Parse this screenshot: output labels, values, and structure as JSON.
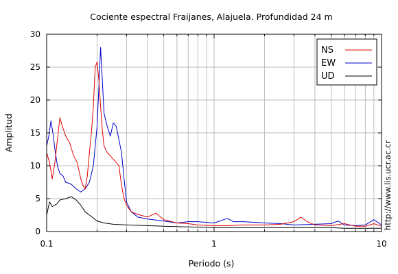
{
  "chart_data": {
    "type": "line",
    "title": "Cociente espectral Fraijanes, Alajuela. Profundidad 24 m",
    "xlabel": "Periodo (s)",
    "ylabel": "Amplitud",
    "xscale": "log",
    "xlim": [
      0.1,
      10
    ],
    "ylim": [
      0,
      30
    ],
    "xticks": [
      {
        "value": 0.1,
        "label": "0.1"
      },
      {
        "value": 1,
        "label": "1"
      },
      {
        "value": 10,
        "label": "10"
      }
    ],
    "yticks": [
      0,
      5,
      10,
      15,
      20,
      25,
      30
    ],
    "grid": true,
    "legend_position": "top-right",
    "side_note": "http://www.lis.ucr.ac.cr",
    "series": [
      {
        "name": "NS",
        "color": "#e00000",
        "points": [
          [
            0.1,
            12.0
          ],
          [
            0.104,
            10.5
          ],
          [
            0.108,
            8.0
          ],
          [
            0.112,
            10.5
          ],
          [
            0.116,
            14.0
          ],
          [
            0.12,
            17.3
          ],
          [
            0.124,
            16.0
          ],
          [
            0.13,
            14.5
          ],
          [
            0.137,
            13.5
          ],
          [
            0.145,
            11.5
          ],
          [
            0.152,
            10.5
          ],
          [
            0.16,
            8.0
          ],
          [
            0.165,
            7.0
          ],
          [
            0.17,
            6.5
          ],
          [
            0.175,
            8.5
          ],
          [
            0.18,
            12.0
          ],
          [
            0.185,
            15.0
          ],
          [
            0.19,
            19.0
          ],
          [
            0.195,
            25.0
          ],
          [
            0.2,
            25.8
          ],
          [
            0.205,
            23.0
          ],
          [
            0.21,
            19.0
          ],
          [
            0.215,
            15.5
          ],
          [
            0.22,
            13.0
          ],
          [
            0.23,
            12.0
          ],
          [
            0.24,
            11.5
          ],
          [
            0.25,
            11.0
          ],
          [
            0.26,
            10.5
          ],
          [
            0.27,
            10.0
          ],
          [
            0.28,
            7.0
          ],
          [
            0.29,
            5.0
          ],
          [
            0.3,
            4.0
          ],
          [
            0.32,
            3.0
          ],
          [
            0.35,
            2.6
          ],
          [
            0.4,
            2.2
          ],
          [
            0.45,
            2.8
          ],
          [
            0.5,
            1.8
          ],
          [
            0.6,
            1.3
          ],
          [
            0.7,
            1.2
          ],
          [
            0.8,
            1.0
          ],
          [
            1.0,
            0.9
          ],
          [
            1.2,
            0.9
          ],
          [
            1.5,
            1.0
          ],
          [
            2.0,
            1.0
          ],
          [
            2.5,
            1.1
          ],
          [
            3.0,
            1.5
          ],
          [
            3.3,
            2.2
          ],
          [
            3.6,
            1.5
          ],
          [
            4.0,
            1.0
          ],
          [
            5.0,
            0.9
          ],
          [
            6.0,
            1.2
          ],
          [
            7.0,
            0.8
          ],
          [
            8.0,
            0.8
          ],
          [
            9.0,
            1.2
          ],
          [
            10.0,
            0.8
          ]
        ]
      },
      {
        "name": "EW",
        "color": "#0000c8",
        "points": [
          [
            0.1,
            13.0
          ],
          [
            0.103,
            14.5
          ],
          [
            0.106,
            16.8
          ],
          [
            0.109,
            15.0
          ],
          [
            0.112,
            12.5
          ],
          [
            0.116,
            10.0
          ],
          [
            0.12,
            8.8
          ],
          [
            0.125,
            8.5
          ],
          [
            0.13,
            7.5
          ],
          [
            0.14,
            7.2
          ],
          [
            0.15,
            6.5
          ],
          [
            0.16,
            6.0
          ],
          [
            0.17,
            6.5
          ],
          [
            0.18,
            7.5
          ],
          [
            0.19,
            10.0
          ],
          [
            0.2,
            16.0
          ],
          [
            0.205,
            22.0
          ],
          [
            0.21,
            28.0
          ],
          [
            0.215,
            23.0
          ],
          [
            0.22,
            18.0
          ],
          [
            0.23,
            16.0
          ],
          [
            0.24,
            14.5
          ],
          [
            0.25,
            16.5
          ],
          [
            0.26,
            16.0
          ],
          [
            0.27,
            14.0
          ],
          [
            0.28,
            12.0
          ],
          [
            0.29,
            8.0
          ],
          [
            0.3,
            4.5
          ],
          [
            0.32,
            3.0
          ],
          [
            0.35,
            2.2
          ],
          [
            0.4,
            1.9
          ],
          [
            0.5,
            1.6
          ],
          [
            0.6,
            1.3
          ],
          [
            0.7,
            1.5
          ],
          [
            0.8,
            1.5
          ],
          [
            1.0,
            1.3
          ],
          [
            1.2,
            2.0
          ],
          [
            1.3,
            1.5
          ],
          [
            1.5,
            1.5
          ],
          [
            2.0,
            1.3
          ],
          [
            2.5,
            1.2
          ],
          [
            3.0,
            1.0
          ],
          [
            4.0,
            1.1
          ],
          [
            5.0,
            1.2
          ],
          [
            5.5,
            1.6
          ],
          [
            6.0,
            1.0
          ],
          [
            7.0,
            0.9
          ],
          [
            8.0,
            1.0
          ],
          [
            9.0,
            1.8
          ],
          [
            10.0,
            1.0
          ]
        ]
      },
      {
        "name": "UD",
        "color": "#000000",
        "points": [
          [
            0.1,
            2.5
          ],
          [
            0.104,
            4.5
          ],
          [
            0.108,
            3.8
          ],
          [
            0.115,
            4.2
          ],
          [
            0.12,
            4.8
          ],
          [
            0.13,
            5.0
          ],
          [
            0.14,
            5.3
          ],
          [
            0.15,
            4.8
          ],
          [
            0.16,
            4.0
          ],
          [
            0.17,
            3.0
          ],
          [
            0.18,
            2.5
          ],
          [
            0.2,
            1.6
          ],
          [
            0.22,
            1.3
          ],
          [
            0.25,
            1.1
          ],
          [
            0.3,
            1.0
          ],
          [
            0.4,
            0.9
          ],
          [
            0.5,
            0.8
          ],
          [
            0.7,
            0.7
          ],
          [
            1.0,
            0.6
          ],
          [
            1.5,
            0.6
          ],
          [
            2.0,
            0.6
          ],
          [
            3.0,
            0.6
          ],
          [
            4.0,
            0.6
          ],
          [
            5.0,
            0.6
          ],
          [
            6.0,
            0.5
          ],
          [
            7.0,
            0.5
          ],
          [
            8.0,
            0.5
          ],
          [
            9.0,
            0.5
          ],
          [
            10.0,
            0.5
          ]
        ]
      }
    ]
  }
}
